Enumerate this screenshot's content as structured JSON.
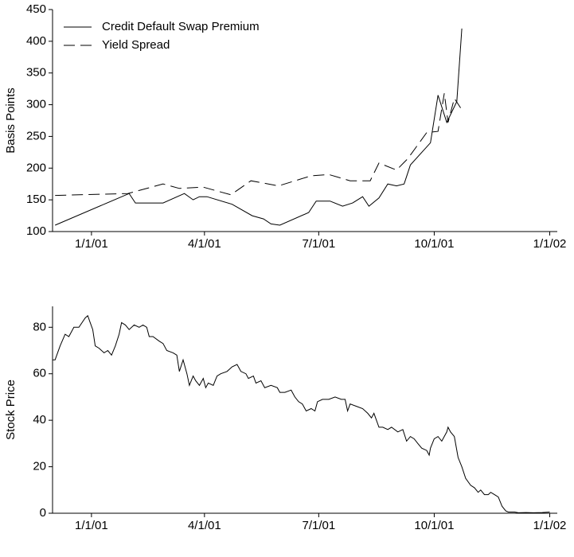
{
  "chart_data": [
    {
      "type": "line",
      "ylabel": "Basis Points",
      "legend": "upper left",
      "xlim": [
        -31,
        371
      ],
      "ylim": [
        100,
        450
      ],
      "xticks": [
        {
          "value": 0,
          "label": "1/1/01"
        },
        {
          "value": 90,
          "label": "4/1/01"
        },
        {
          "value": 181,
          "label": "7/1/01"
        },
        {
          "value": 273,
          "label": "10/1/01"
        },
        {
          "value": 365,
          "label": "1/1/02"
        }
      ],
      "yticks": [
        100,
        150,
        200,
        250,
        300,
        350,
        400,
        450
      ],
      "series": [
        {
          "name": "Credit Default Swap Premium",
          "color": "#000000",
          "linestyle": "solid",
          "x": [
            -29,
            30,
            35,
            57,
            74,
            81,
            86,
            92,
            112,
            128,
            137,
            143,
            150,
            173,
            179,
            190,
            200,
            208,
            216,
            221,
            229,
            236,
            243,
            249,
            254,
            270,
            276,
            283,
            291,
            295
          ],
          "values": [
            110,
            160,
            145,
            145,
            160,
            150,
            155,
            155,
            143,
            125,
            120,
            112,
            110,
            130,
            148,
            148,
            140,
            145,
            155,
            140,
            153,
            175,
            172,
            175,
            205,
            240,
            315,
            272,
            305,
            420
          ]
        },
        {
          "name": "Yield Spread",
          "color": "#000000",
          "linestyle": "dashed",
          "x": [
            -29,
            29,
            57,
            70,
            89,
            111,
            127,
            149,
            175,
            189,
            206,
            222,
            229,
            243,
            252,
            267,
            276,
            281,
            284,
            289,
            294
          ],
          "values": [
            157,
            160,
            175,
            168,
            170,
            158,
            180,
            172,
            188,
            190,
            180,
            180,
            208,
            197,
            215,
            256,
            258,
            318,
            272,
            310,
            295
          ]
        }
      ]
    },
    {
      "type": "line",
      "ylabel": "Stock Price",
      "xlim": [
        -31,
        371
      ],
      "ylim": [
        0,
        89
      ],
      "xticks": [
        {
          "value": 0,
          "label": "1/1/01"
        },
        {
          "value": 90,
          "label": "4/1/01"
        },
        {
          "value": 181,
          "label": "7/1/01"
        },
        {
          "value": 273,
          "label": "10/1/01"
        },
        {
          "value": 365,
          "label": "1/1/02"
        }
      ],
      "yticks": [
        0,
        20,
        40,
        60,
        80
      ],
      "series": [
        {
          "color": "#000000",
          "linestyle": "solid",
          "x": [
            -31,
            -29,
            -25,
            -21,
            -18,
            -14,
            -10,
            -5,
            -3,
            -1,
            1,
            3,
            6,
            10,
            13,
            16,
            19,
            22,
            24,
            27,
            30,
            34,
            38,
            41,
            44,
            46,
            49,
            54,
            57,
            60,
            65,
            68,
            70,
            73,
            76,
            78,
            81,
            83,
            86,
            89,
            91,
            93,
            97,
            100,
            103,
            108,
            112,
            116,
            119,
            123,
            125,
            129,
            131,
            135,
            138,
            143,
            148,
            150,
            154,
            159,
            162,
            165,
            168,
            171,
            175,
            178,
            180,
            184,
            189,
            194,
            199,
            202,
            204,
            206,
            211,
            216,
            220,
            223,
            225,
            229,
            232,
            236,
            239,
            244,
            248,
            251,
            254,
            257,
            260,
            263,
            267,
            269,
            270,
            273,
            276,
            279,
            283,
            284,
            286,
            289,
            292,
            295,
            298,
            302,
            305,
            308,
            310,
            313,
            316,
            318,
            321,
            324,
            327,
            330,
            332,
            337,
            340,
            346,
            352,
            359,
            365
          ],
          "values": [
            66,
            66,
            72,
            77,
            76,
            80,
            80,
            84,
            85,
            82,
            79,
            72,
            71,
            69,
            70,
            68,
            72,
            77,
            82,
            81,
            79,
            81,
            80,
            81,
            80,
            76,
            76,
            74,
            73,
            70,
            69,
            68,
            61,
            66,
            60,
            55,
            59,
            57,
            55,
            58,
            54,
            56,
            55,
            59,
            60,
            61,
            63,
            64,
            61,
            60,
            58,
            59,
            56,
            57,
            54,
            55,
            54,
            52,
            52,
            53,
            50,
            48,
            47,
            44,
            45,
            44,
            48,
            49,
            49,
            50,
            49,
            49,
            44,
            47,
            46,
            45,
            43,
            41,
            43,
            37,
            37,
            36,
            37,
            35,
            36,
            31,
            33,
            32,
            30,
            28,
            27,
            25,
            28,
            32,
            33,
            31,
            35,
            37,
            35,
            33,
            24,
            20,
            15,
            12,
            11,
            9,
            10,
            8,
            8,
            9,
            8,
            7,
            3,
            1,
            0.5,
            0.5,
            0.2,
            0.3,
            0.2,
            0.3,
            0.5
          ]
        }
      ]
    }
  ]
}
